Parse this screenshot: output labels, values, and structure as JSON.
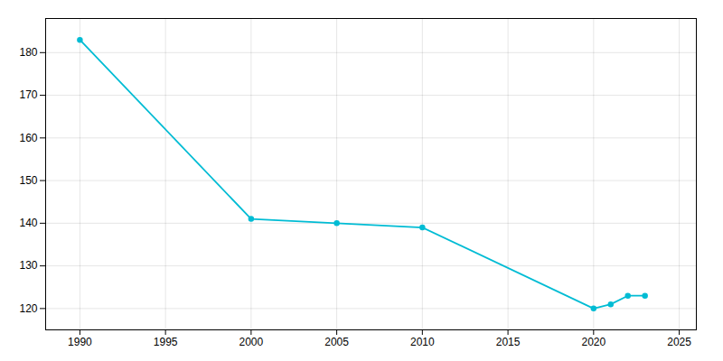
{
  "chart_data": {
    "type": "line",
    "x": [
      1990,
      2000,
      2005,
      2010,
      2020,
      2021,
      2022,
      2023
    ],
    "values": [
      183,
      141,
      140,
      139,
      120,
      121,
      123,
      123
    ],
    "color": "#00bcd4",
    "marker": "circle",
    "xlim": [
      1988,
      2026
    ],
    "ylim": [
      115,
      188
    ],
    "xticks": [
      1990,
      1995,
      2000,
      2005,
      2010,
      2015,
      2020,
      2025
    ],
    "yticks": [
      120,
      130,
      140,
      150,
      160,
      170,
      180
    ],
    "grid": true
  }
}
